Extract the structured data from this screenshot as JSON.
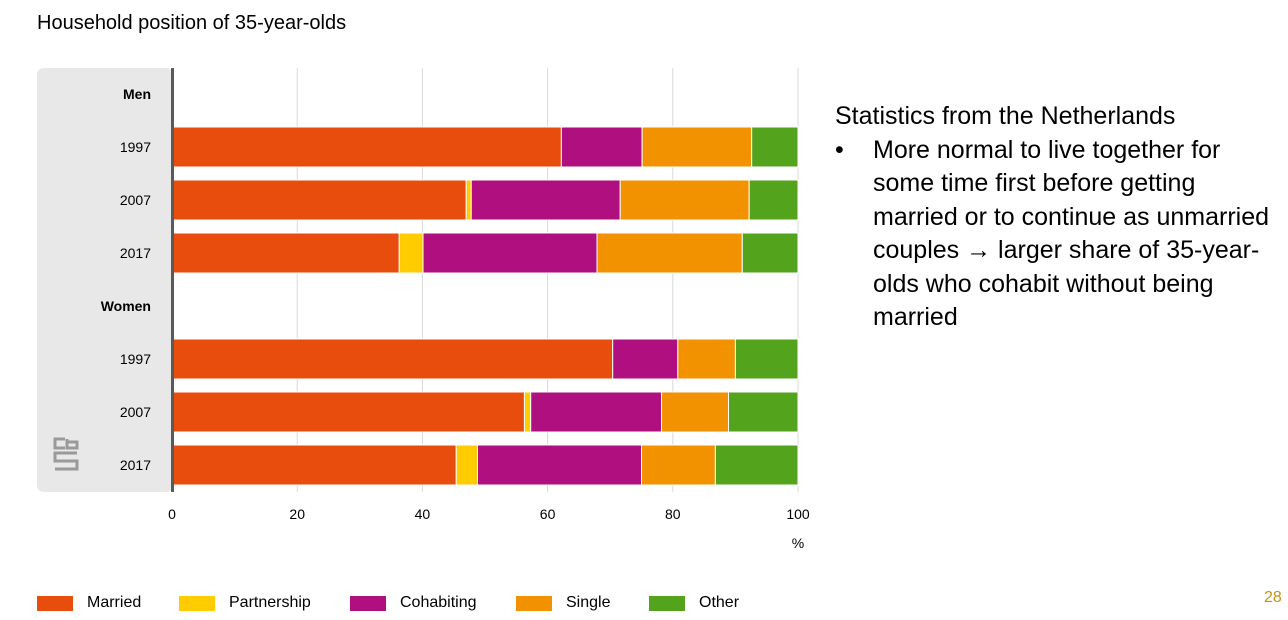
{
  "slide": {
    "title": "Household position of 35-year-olds",
    "notes_heading": "Statistics from the Netherlands",
    "bullet": "More normal to live together for some time first before getting married or to continue as unmarried couples → larger share of 35-year-olds who cohabit without being married",
    "page_number": "28"
  },
  "colors": {
    "Married": "#e84d0e",
    "Partnership": "#ffcc00",
    "Cohabiting": "#af0f7f",
    "Single": "#f39200",
    "Other": "#53a31d",
    "panel": "#e8e8e8",
    "grid": "#d9d9d9",
    "axis": "#595959",
    "page_number": "#c69214"
  },
  "logo": {
    "icon": "cbs-logo-icon"
  },
  "chart_data": {
    "type": "bar",
    "orientation": "horizontal",
    "stacked": true,
    "title": "Household position of 35-year-olds",
    "groups": [
      {
        "label": "Men",
        "categories": [
          "1997",
          "2007",
          "2017"
        ]
      },
      {
        "label": "Women",
        "categories": [
          "1997",
          "2007",
          "2017"
        ]
      }
    ],
    "series": [
      {
        "name": "Married",
        "values": [
          62.2,
          47.0,
          36.3,
          70.4,
          56.3,
          45.4
        ]
      },
      {
        "name": "Partnership",
        "values": [
          0.0,
          0.8,
          3.8,
          0.0,
          1.0,
          3.4
        ]
      },
      {
        "name": "Cohabiting",
        "values": [
          12.9,
          23.8,
          27.8,
          10.4,
          20.9,
          26.2
        ]
      },
      {
        "name": "Single",
        "values": [
          17.5,
          20.6,
          23.2,
          9.2,
          10.7,
          11.8
        ]
      },
      {
        "name": "Other",
        "values": [
          7.4,
          7.8,
          8.9,
          10.0,
          11.1,
          13.2
        ]
      }
    ],
    "xlim": [
      0,
      100
    ],
    "xticks": [
      0,
      20,
      40,
      60,
      80,
      100
    ],
    "xlabel": "%",
    "grid": true,
    "legend": "bottom"
  }
}
